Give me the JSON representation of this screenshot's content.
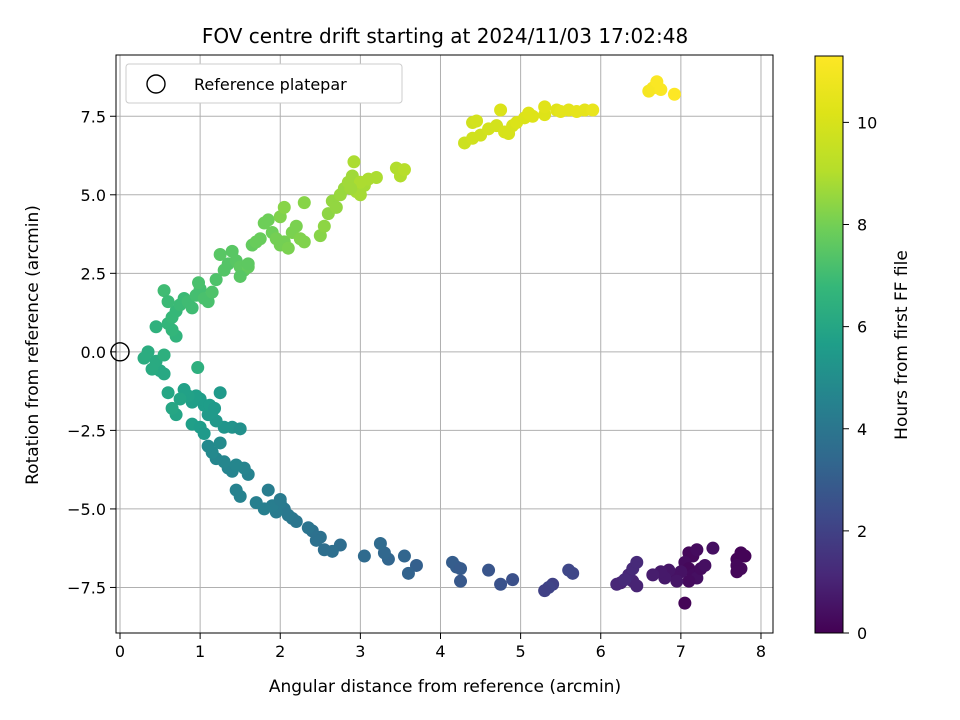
{
  "chart_data": {
    "type": "scatter",
    "title": "FOV centre drift starting at 2024/11/03 17:02:48",
    "xlabel": "Angular distance from reference (arcmin)",
    "ylabel": "Rotation from reference (arcmin)",
    "xlim": [
      -0.05,
      8.15
    ],
    "ylim": [
      -8.95,
      9.45
    ],
    "xticks": [
      0,
      1,
      2,
      3,
      4,
      5,
      6,
      7,
      8
    ],
    "xtick_labels": [
      "0",
      "1",
      "2",
      "3",
      "4",
      "5",
      "6",
      "7",
      "8"
    ],
    "yticks": [
      -7.5,
      -5.0,
      -2.5,
      0.0,
      2.5,
      5.0,
      7.5
    ],
    "ytick_labels": [
      "−7.5",
      "−5.0",
      "−2.5",
      "0.0",
      "2.5",
      "5.0",
      "7.5"
    ],
    "grid": true,
    "legend": {
      "position": "top-left",
      "entries": [
        "Reference platepar"
      ]
    },
    "reference_point": {
      "x": 0.0,
      "y": 0.0,
      "label": "Reference platepar",
      "marker": "open-circle"
    },
    "colorbar": {
      "label": "Hours from first FF file",
      "colormap": "viridis",
      "range": [
        0,
        11.3
      ],
      "ticks": [
        0,
        2,
        4,
        6,
        8,
        10
      ],
      "tick_labels": [
        "0",
        "2",
        "4",
        "6",
        "8",
        "10"
      ]
    },
    "series": [
      {
        "color_by": "hours",
        "points": [
          [
            7.05,
            -8.0,
            0.1
          ],
          [
            7.1,
            -6.4,
            0.2
          ],
          [
            7.15,
            -6.5,
            0.2
          ],
          [
            7.2,
            -6.3,
            0.3
          ],
          [
            7.05,
            -6.7,
            0.3
          ],
          [
            7.1,
            -6.9,
            0.2
          ],
          [
            7.15,
            -7.1,
            0.3
          ],
          [
            7.2,
            -7.2,
            0.4
          ],
          [
            7.25,
            -6.9,
            0.3
          ],
          [
            7.3,
            -6.8,
            0.4
          ],
          [
            7.1,
            -7.3,
            0.3
          ],
          [
            7.0,
            -7.0,
            0.5
          ],
          [
            6.9,
            -7.1,
            0.5
          ],
          [
            6.85,
            -6.95,
            0.6
          ],
          [
            7.4,
            -6.25,
            0.4
          ],
          [
            7.7,
            -6.6,
            0.1
          ],
          [
            7.75,
            -6.4,
            0.1
          ],
          [
            7.8,
            -6.5,
            0.1
          ],
          [
            7.7,
            -6.8,
            0.2
          ],
          [
            7.75,
            -6.9,
            0.2
          ],
          [
            7.7,
            -7.0,
            0.2
          ],
          [
            6.95,
            -7.3,
            0.6
          ],
          [
            6.8,
            -7.2,
            0.7
          ],
          [
            6.75,
            -7.0,
            0.7
          ],
          [
            6.65,
            -7.1,
            0.8
          ],
          [
            6.45,
            -7.45,
            1.0
          ],
          [
            6.4,
            -7.3,
            1.0
          ],
          [
            6.35,
            -7.1,
            1.1
          ],
          [
            6.4,
            -6.9,
            1.2
          ],
          [
            6.45,
            -6.7,
            1.2
          ],
          [
            6.25,
            -7.35,
            1.0
          ],
          [
            6.2,
            -7.4,
            1.1
          ],
          [
            6.3,
            -7.25,
            1.2
          ],
          [
            5.65,
            -7.05,
            2.2
          ],
          [
            5.6,
            -6.95,
            2.2
          ],
          [
            5.4,
            -7.4,
            2.0
          ],
          [
            5.35,
            -7.5,
            2.1
          ],
          [
            5.3,
            -7.6,
            2.0
          ],
          [
            4.9,
            -7.25,
            2.5
          ],
          [
            4.75,
            -7.4,
            2.6
          ],
          [
            4.6,
            -6.95,
            2.7
          ],
          [
            4.25,
            -7.3,
            2.8
          ],
          [
            4.2,
            -6.85,
            3.0
          ],
          [
            4.15,
            -6.7,
            3.0
          ],
          [
            4.25,
            -6.9,
            2.9
          ],
          [
            3.7,
            -6.8,
            3.1
          ],
          [
            3.6,
            -7.05,
            3.2
          ],
          [
            3.55,
            -6.5,
            3.3
          ],
          [
            3.35,
            -6.6,
            3.3
          ],
          [
            3.3,
            -6.4,
            3.4
          ],
          [
            3.25,
            -6.1,
            3.5
          ],
          [
            3.05,
            -6.5,
            3.5
          ],
          [
            2.75,
            -6.15,
            3.6
          ],
          [
            2.65,
            -6.35,
            3.7
          ],
          [
            2.55,
            -6.3,
            3.7
          ],
          [
            2.5,
            -5.9,
            3.8
          ],
          [
            2.45,
            -6.0,
            3.8
          ],
          [
            2.4,
            -5.7,
            3.8
          ],
          [
            2.35,
            -5.6,
            3.9
          ],
          [
            2.2,
            -5.4,
            4.0
          ],
          [
            2.15,
            -5.3,
            4.0
          ],
          [
            2.1,
            -5.2,
            4.1
          ],
          [
            2.05,
            -5.0,
            4.1
          ],
          [
            2.0,
            -4.8,
            4.2
          ],
          [
            1.95,
            -5.1,
            4.2
          ],
          [
            1.9,
            -4.9,
            4.3
          ],
          [
            1.85,
            -4.4,
            4.3
          ],
          [
            1.8,
            -5.0,
            4.4
          ],
          [
            1.7,
            -4.8,
            4.4
          ],
          [
            1.5,
            -4.6,
            4.5
          ],
          [
            1.45,
            -4.4,
            4.5
          ],
          [
            1.4,
            -3.8,
            4.6
          ],
          [
            1.35,
            -3.7,
            4.6
          ],
          [
            1.3,
            -3.5,
            4.7
          ],
          [
            1.2,
            -3.4,
            4.7
          ],
          [
            1.15,
            -3.2,
            4.8
          ],
          [
            1.1,
            -3.0,
            4.8
          ],
          [
            1.25,
            -2.9,
            4.9
          ],
          [
            2.0,
            -4.7,
            4.2
          ],
          [
            1.6,
            -3.9,
            4.5
          ],
          [
            1.55,
            -3.7,
            4.6
          ],
          [
            1.45,
            -3.6,
            4.7
          ],
          [
            1.4,
            -2.4,
            5.2
          ],
          [
            1.5,
            -2.45,
            5.1
          ],
          [
            1.3,
            -2.4,
            5.3
          ],
          [
            1.25,
            -1.3,
            5.5
          ],
          [
            1.2,
            -2.2,
            5.4
          ],
          [
            1.15,
            -1.9,
            5.5
          ],
          [
            1.1,
            -2.0,
            5.5
          ],
          [
            1.05,
            -1.7,
            5.6
          ],
          [
            1.0,
            -1.5,
            5.6
          ],
          [
            0.95,
            -1.4,
            5.7
          ],
          [
            0.9,
            -1.6,
            5.7
          ],
          [
            0.85,
            -1.4,
            5.8
          ],
          [
            0.8,
            -1.2,
            5.8
          ],
          [
            0.75,
            -1.5,
            5.9
          ],
          [
            0.7,
            -2.0,
            5.9
          ],
          [
            0.65,
            -1.8,
            6.0
          ],
          [
            0.6,
            -1.3,
            6.0
          ],
          [
            0.55,
            -0.7,
            6.1
          ],
          [
            0.5,
            -0.6,
            6.1
          ],
          [
            0.45,
            -0.3,
            6.2
          ],
          [
            0.4,
            -0.55,
            6.2
          ],
          [
            0.35,
            0.0,
            6.3
          ],
          [
            0.3,
            -0.2,
            6.3
          ],
          [
            0.55,
            -0.1,
            6.4
          ],
          [
            0.97,
            -0.5,
            6.4
          ],
          [
            0.9,
            -2.3,
            5.7
          ],
          [
            1.0,
            -2.4,
            5.6
          ],
          [
            1.05,
            -2.6,
            5.5
          ],
          [
            1.12,
            -1.7,
            5.6
          ],
          [
            1.18,
            -1.8,
            5.5
          ],
          [
            0.45,
            0.8,
            6.5
          ],
          [
            0.7,
            0.5,
            6.6
          ],
          [
            0.65,
            0.7,
            6.7
          ],
          [
            0.6,
            0.9,
            6.7
          ],
          [
            0.65,
            1.1,
            6.8
          ],
          [
            0.7,
            1.3,
            6.8
          ],
          [
            0.75,
            1.5,
            6.9
          ],
          [
            0.8,
            1.7,
            6.9
          ],
          [
            0.85,
            1.6,
            7.0
          ],
          [
            0.9,
            1.4,
            7.0
          ],
          [
            0.95,
            1.8,
            7.1
          ],
          [
            1.0,
            2.0,
            7.1
          ],
          [
            1.05,
            1.7,
            7.2
          ],
          [
            1.1,
            1.6,
            7.2
          ],
          [
            1.15,
            1.9,
            7.3
          ],
          [
            1.2,
            2.3,
            7.3
          ],
          [
            0.55,
            1.95,
            7.0
          ],
          [
            0.6,
            1.6,
            6.9
          ],
          [
            0.98,
            2.2,
            7.2
          ],
          [
            1.3,
            2.6,
            7.4
          ],
          [
            1.35,
            2.8,
            7.4
          ],
          [
            1.4,
            3.2,
            7.5
          ],
          [
            1.45,
            2.9,
            7.5
          ],
          [
            1.5,
            2.7,
            7.6
          ],
          [
            1.55,
            2.6,
            7.6
          ],
          [
            1.6,
            2.7,
            7.7
          ],
          [
            1.65,
            3.4,
            7.7
          ],
          [
            1.7,
            3.5,
            7.8
          ],
          [
            1.75,
            3.6,
            7.8
          ],
          [
            1.8,
            4.1,
            7.9
          ],
          [
            1.85,
            4.2,
            7.9
          ],
          [
            1.9,
            3.8,
            7.9
          ],
          [
            1.95,
            3.6,
            8.0
          ],
          [
            2.0,
            3.4,
            8.0
          ],
          [
            2.05,
            3.5,
            8.0
          ],
          [
            2.1,
            3.3,
            8.1
          ],
          [
            2.15,
            3.8,
            8.1
          ],
          [
            2.2,
            4.0,
            8.1
          ],
          [
            2.25,
            3.6,
            8.2
          ],
          [
            2.3,
            3.5,
            8.2
          ],
          [
            2.0,
            4.3,
            8.2
          ],
          [
            2.05,
            4.6,
            8.3
          ],
          [
            2.3,
            4.75,
            8.3
          ],
          [
            2.5,
            3.7,
            8.3
          ],
          [
            2.55,
            4.0,
            8.4
          ],
          [
            2.6,
            4.4,
            8.4
          ],
          [
            2.65,
            4.8,
            8.5
          ],
          [
            2.7,
            4.6,
            8.5
          ],
          [
            1.25,
            3.1,
            7.5
          ],
          [
            1.6,
            2.8,
            7.6
          ],
          [
            1.5,
            2.4,
            7.5
          ],
          [
            2.75,
            5.0,
            8.6
          ],
          [
            2.8,
            5.2,
            8.6
          ],
          [
            2.85,
            5.4,
            8.7
          ],
          [
            2.9,
            5.6,
            8.7
          ],
          [
            2.95,
            5.1,
            8.8
          ],
          [
            3.0,
            5.0,
            8.8
          ],
          [
            3.05,
            5.3,
            8.8
          ],
          [
            3.1,
            5.5,
            8.9
          ],
          [
            3.2,
            5.55,
            8.9
          ],
          [
            2.92,
            6.05,
            8.9
          ],
          [
            3.45,
            5.85,
            9.0
          ],
          [
            3.5,
            5.6,
            9.0
          ],
          [
            3.55,
            5.8,
            9.1
          ],
          [
            3.0,
            5.4,
            8.9
          ],
          [
            2.88,
            5.2,
            8.7
          ],
          [
            4.3,
            6.65,
            9.7
          ],
          [
            4.4,
            6.8,
            9.8
          ],
          [
            4.5,
            6.9,
            9.8
          ],
          [
            4.6,
            7.1,
            9.9
          ],
          [
            4.7,
            7.2,
            9.9
          ],
          [
            4.8,
            7.0,
            10.0
          ],
          [
            4.85,
            6.95,
            10.0
          ],
          [
            4.9,
            7.2,
            10.0
          ],
          [
            4.95,
            7.3,
            10.1
          ],
          [
            4.4,
            7.3,
            9.8
          ],
          [
            4.45,
            7.35,
            9.9
          ],
          [
            4.75,
            7.7,
            10.1
          ],
          [
            5.05,
            7.45,
            10.1
          ],
          [
            5.1,
            7.6,
            10.2
          ],
          [
            5.15,
            7.5,
            10.2
          ],
          [
            5.3,
            7.55,
            10.2
          ],
          [
            5.3,
            7.8,
            10.3
          ],
          [
            5.45,
            7.7,
            10.3
          ],
          [
            5.5,
            7.65,
            10.4
          ],
          [
            5.6,
            7.7,
            10.4
          ],
          [
            5.7,
            7.65,
            10.5
          ],
          [
            5.8,
            7.7,
            10.5
          ],
          [
            5.9,
            7.7,
            10.6
          ],
          [
            6.6,
            8.3,
            11.0
          ],
          [
            6.65,
            8.4,
            11.1
          ],
          [
            6.7,
            8.6,
            11.2
          ],
          [
            6.75,
            8.35,
            11.2
          ],
          [
            6.92,
            8.2,
            11.3
          ]
        ]
      }
    ]
  }
}
